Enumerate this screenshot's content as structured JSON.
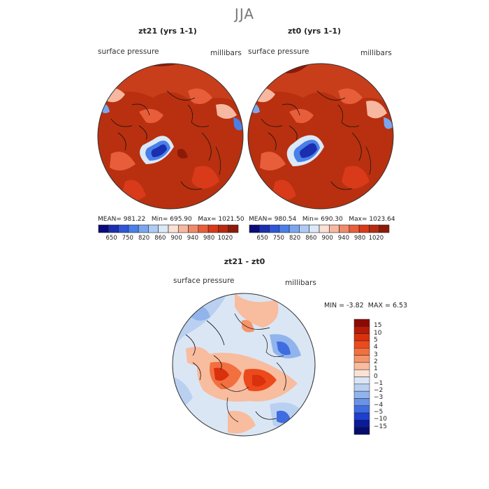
{
  "figure": {
    "title": "JJA"
  },
  "panels": [
    {
      "id": "zt21",
      "title": "zt21 (yrs 1-1)",
      "field": "surface pressure",
      "units": "millibars",
      "stats": {
        "mean_label": "MEAN=",
        "mean": "981.22",
        "min_label": "Min=",
        "min": "695.90",
        "max_label": "Max=",
        "max": "1021.50"
      }
    },
    {
      "id": "zt0",
      "title": "zt0 (yrs 1-1)",
      "field": "surface pressure",
      "units": "millibars",
      "stats": {
        "mean_label": "MEAN=",
        "mean": "980.54",
        "min_label": "Min=",
        "min": "690.30",
        "max_label": "Max=",
        "max": "1023.64"
      }
    }
  ],
  "colorbar_top": {
    "ticks": [
      "650",
      "750",
      "820",
      "860",
      "900",
      "940",
      "980",
      "1020"
    ],
    "colors": [
      "#0a0a7a",
      "#1a2fb0",
      "#2f55d8",
      "#4a7fe8",
      "#7aa6f0",
      "#aecbf5",
      "#dbe8f7",
      "#fbe0d6",
      "#f6b8a0",
      "#f08a6a",
      "#e85e3a",
      "#d93a1a",
      "#b82a10",
      "#8c1a08"
    ]
  },
  "diff_panel": {
    "title": "zt21 - zt0",
    "field": "surface pressure",
    "units": "millibars",
    "min_label": "MIN =",
    "min": "-3.82",
    "max_label": "MAX =",
    "max": "6.53",
    "colorbar_levels": [
      "15",
      "10",
      "5",
      "4",
      "3",
      "2",
      "1",
      "0",
      "−1",
      "−2",
      "−3",
      "−4",
      "−5",
      "−10",
      "−15"
    ],
    "colorbar_colors": [
      "#8c0a04",
      "#b81a08",
      "#d9300e",
      "#ec4a1c",
      "#f2703f",
      "#f5946a",
      "#f8bc9e",
      "#fbe2d4",
      "#dbe6f5",
      "#b9d0f1",
      "#91b4ec",
      "#6a92e6",
      "#3f6de0",
      "#1d40d0",
      "#0a1a9c",
      "#050c6c"
    ]
  }
}
